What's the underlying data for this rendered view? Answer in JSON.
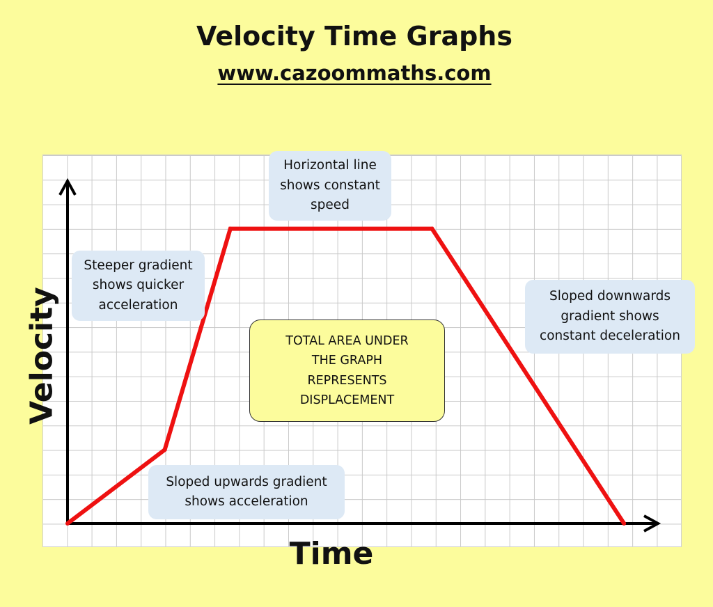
{
  "title": "Velocity Time Graphs",
  "subtitle": "www.cazoommaths.com",
  "colors": {
    "background": "#fcfc9c",
    "line": "#ee1111",
    "note_background": "#dde9f5",
    "grid": "#c9c9c9"
  },
  "annotations": {
    "constant_speed": "Horizontal line\nshows constant\nspeed",
    "steeper": "Steeper gradient\nshows quicker\nacceleration",
    "deceleration": "Sloped downwards\ngradient shows\nconstant deceleration",
    "acceleration": "Sloped upwards gradient\nshows acceleration",
    "area": "TOTAL AREA UNDER\nTHE GRAPH\nREPRESENTS\nDISPLACEMENT"
  },
  "chart_data": {
    "type": "line",
    "title": "Velocity Time Graphs",
    "xlabel": "Time",
    "ylabel": "Velocity",
    "grid": true,
    "legend": "none",
    "xlim": [
      0,
      24.5
    ],
    "ylim": [
      0,
      14
    ],
    "series": [
      {
        "color": "#ee1111",
        "points": [
          [
            0,
            0
          ],
          [
            4,
            3
          ],
          [
            6.7,
            12
          ],
          [
            15,
            12
          ],
          [
            22.9,
            0
          ]
        ]
      }
    ]
  }
}
